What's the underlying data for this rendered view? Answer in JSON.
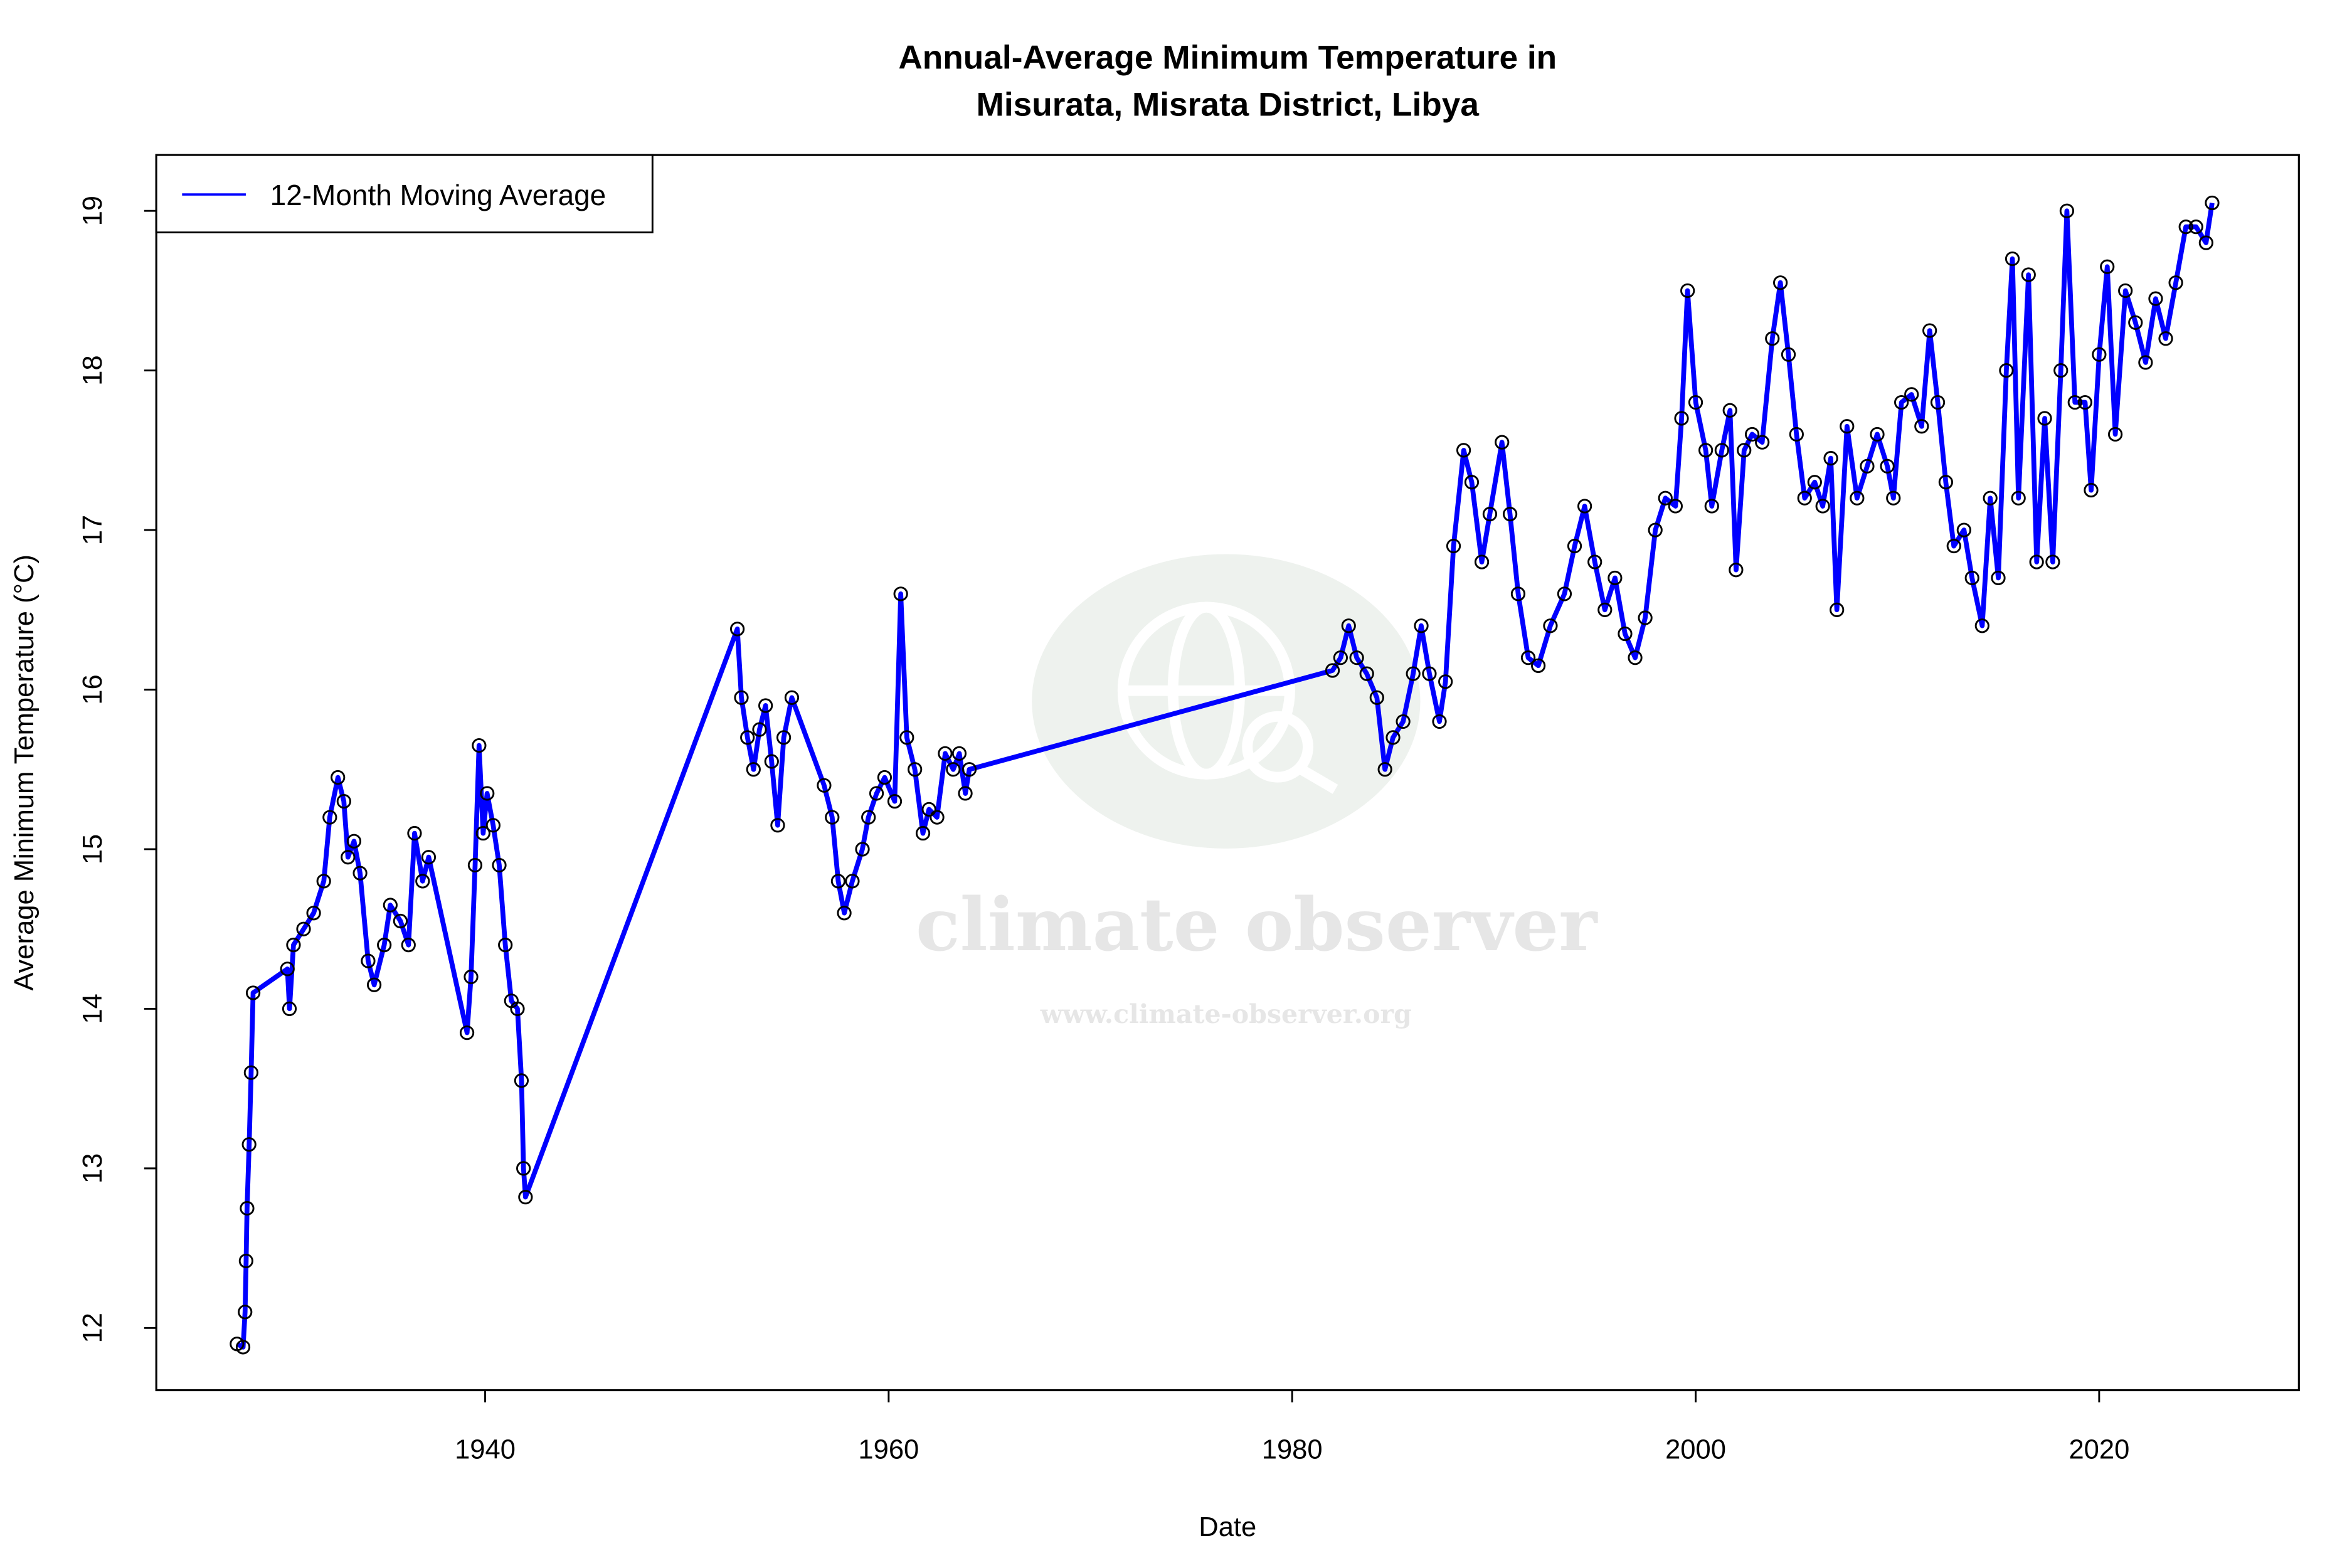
{
  "chart_data": {
    "type": "line",
    "title": "Annual-Average Minimum Temperature in",
    "subtitle": "Misurata, Misrata District, Libya",
    "xlabel": "Date",
    "ylabel": "Average Minimum Temperature (°C)",
    "xlim": [
      1923.7,
      2029.9
    ],
    "ylim": [
      11.61,
      19.35
    ],
    "x_ticks": [
      "1940",
      "1960",
      "1980",
      "2000",
      "2020"
    ],
    "y_ticks": [
      "12",
      "13",
      "14",
      "15",
      "16",
      "17",
      "18",
      "19"
    ],
    "grid": false,
    "legend_position": "top-left",
    "series": [
      {
        "name": "12-Month Moving Average",
        "color": "#0000ff",
        "marker": "open-circle",
        "points": [
          [
            1927.7,
            11.9
          ],
          [
            1928.0,
            11.88
          ],
          [
            1928.1,
            12.1
          ],
          [
            1928.15,
            12.42
          ],
          [
            1928.2,
            12.75
          ],
          [
            1928.3,
            13.15
          ],
          [
            1928.4,
            13.6
          ],
          [
            1928.5,
            14.1
          ],
          [
            1930.2,
            14.25
          ],
          [
            1930.3,
            14.0
          ],
          [
            1930.5,
            14.4
          ],
          [
            1931.0,
            14.5
          ],
          [
            1931.5,
            14.6
          ],
          [
            1932.0,
            14.8
          ],
          [
            1932.3,
            15.2
          ],
          [
            1932.7,
            15.45
          ],
          [
            1933.0,
            15.3
          ],
          [
            1933.2,
            14.95
          ],
          [
            1933.5,
            15.05
          ],
          [
            1933.8,
            14.85
          ],
          [
            1934.2,
            14.3
          ],
          [
            1934.5,
            14.15
          ],
          [
            1935.0,
            14.4
          ],
          [
            1935.3,
            14.65
          ],
          [
            1935.8,
            14.55
          ],
          [
            1936.2,
            14.4
          ],
          [
            1936.5,
            15.1
          ],
          [
            1936.9,
            14.8
          ],
          [
            1937.2,
            14.95
          ],
          [
            1939.1,
            13.85
          ],
          [
            1939.3,
            14.2
          ],
          [
            1939.5,
            14.9
          ],
          [
            1939.7,
            15.65
          ],
          [
            1939.9,
            15.1
          ],
          [
            1940.1,
            15.35
          ],
          [
            1940.4,
            15.15
          ],
          [
            1940.7,
            14.9
          ],
          [
            1941.0,
            14.4
          ],
          [
            1941.3,
            14.05
          ],
          [
            1941.6,
            14.0
          ],
          [
            1941.8,
            13.55
          ],
          [
            1941.9,
            13.0
          ],
          [
            1942.0,
            12.82
          ],
          [
            1952.5,
            16.38
          ],
          [
            1952.7,
            15.95
          ],
          [
            1953.0,
            15.7
          ],
          [
            1953.3,
            15.5
          ],
          [
            1953.6,
            15.75
          ],
          [
            1953.9,
            15.9
          ],
          [
            1954.2,
            15.55
          ],
          [
            1954.5,
            15.15
          ],
          [
            1954.8,
            15.7
          ],
          [
            1955.2,
            15.95
          ],
          [
            1956.8,
            15.4
          ],
          [
            1957.2,
            15.2
          ],
          [
            1957.5,
            14.8
          ],
          [
            1957.8,
            14.6
          ],
          [
            1958.2,
            14.8
          ],
          [
            1958.7,
            15.0
          ],
          [
            1959.0,
            15.2
          ],
          [
            1959.4,
            15.35
          ],
          [
            1959.8,
            15.45
          ],
          [
            1960.3,
            15.3
          ],
          [
            1960.6,
            16.6
          ],
          [
            1960.9,
            15.7
          ],
          [
            1961.3,
            15.5
          ],
          [
            1961.7,
            15.1
          ],
          [
            1962.0,
            15.25
          ],
          [
            1962.4,
            15.2
          ],
          [
            1962.8,
            15.6
          ],
          [
            1963.2,
            15.5
          ],
          [
            1963.5,
            15.6
          ],
          [
            1963.8,
            15.35
          ],
          [
            1964.0,
            15.5
          ],
          [
            1982.0,
            16.12
          ],
          [
            1982.4,
            16.2
          ],
          [
            1982.8,
            16.4
          ],
          [
            1983.2,
            16.2
          ],
          [
            1983.7,
            16.1
          ],
          [
            1984.2,
            15.95
          ],
          [
            1984.6,
            15.5
          ],
          [
            1985.0,
            15.7
          ],
          [
            1985.5,
            15.8
          ],
          [
            1986.0,
            16.1
          ],
          [
            1986.4,
            16.4
          ],
          [
            1986.8,
            16.1
          ],
          [
            1987.3,
            15.8
          ],
          [
            1987.6,
            16.05
          ],
          [
            1988.0,
            16.9
          ],
          [
            1988.5,
            17.5
          ],
          [
            1988.9,
            17.3
          ],
          [
            1989.4,
            16.8
          ],
          [
            1989.8,
            17.1
          ],
          [
            1990.4,
            17.55
          ],
          [
            1990.8,
            17.1
          ],
          [
            1991.2,
            16.6
          ],
          [
            1991.7,
            16.2
          ],
          [
            1992.2,
            16.15
          ],
          [
            1992.8,
            16.4
          ],
          [
            1993.5,
            16.6
          ],
          [
            1994.0,
            16.9
          ],
          [
            1994.5,
            17.15
          ],
          [
            1995.0,
            16.8
          ],
          [
            1995.5,
            16.5
          ],
          [
            1996.0,
            16.7
          ],
          [
            1996.5,
            16.35
          ],
          [
            1997.0,
            16.2
          ],
          [
            1997.5,
            16.45
          ],
          [
            1998.0,
            17.0
          ],
          [
            1998.5,
            17.2
          ],
          [
            1999.0,
            17.15
          ],
          [
            1999.3,
            17.7
          ],
          [
            1999.6,
            18.5
          ],
          [
            2000.0,
            17.8
          ],
          [
            2000.5,
            17.5
          ],
          [
            2000.8,
            17.15
          ],
          [
            2001.3,
            17.5
          ],
          [
            2001.7,
            17.75
          ],
          [
            2002.0,
            16.75
          ],
          [
            2002.4,
            17.5
          ],
          [
            2002.8,
            17.6
          ],
          [
            2003.3,
            17.55
          ],
          [
            2003.8,
            18.2
          ],
          [
            2004.2,
            18.55
          ],
          [
            2004.6,
            18.1
          ],
          [
            2005.0,
            17.6
          ],
          [
            2005.4,
            17.2
          ],
          [
            2005.9,
            17.3
          ],
          [
            2006.3,
            17.15
          ],
          [
            2006.7,
            17.45
          ],
          [
            2007.0,
            16.5
          ],
          [
            2007.5,
            17.65
          ],
          [
            2008.0,
            17.2
          ],
          [
            2008.5,
            17.4
          ],
          [
            2009.0,
            17.6
          ],
          [
            2009.5,
            17.4
          ],
          [
            2009.8,
            17.2
          ],
          [
            2010.2,
            17.8
          ],
          [
            2010.7,
            17.85
          ],
          [
            2011.2,
            17.65
          ],
          [
            2011.6,
            18.25
          ],
          [
            2012.0,
            17.8
          ],
          [
            2012.4,
            17.3
          ],
          [
            2012.8,
            16.9
          ],
          [
            2013.3,
            17.0
          ],
          [
            2013.7,
            16.7
          ],
          [
            2014.2,
            16.4
          ],
          [
            2014.6,
            17.2
          ],
          [
            2015.0,
            16.7
          ],
          [
            2015.4,
            18.0
          ],
          [
            2015.7,
            18.7
          ],
          [
            2016.0,
            17.2
          ],
          [
            2016.5,
            18.6
          ],
          [
            2016.9,
            16.8
          ],
          [
            2017.3,
            17.7
          ],
          [
            2017.7,
            16.8
          ],
          [
            2018.1,
            18.0
          ],
          [
            2018.4,
            19.0
          ],
          [
            2018.8,
            17.8
          ],
          [
            2019.3,
            17.8
          ],
          [
            2019.6,
            17.25
          ],
          [
            2020.0,
            18.1
          ],
          [
            2020.4,
            18.65
          ],
          [
            2020.8,
            17.6
          ],
          [
            2021.3,
            18.5
          ],
          [
            2021.8,
            18.3
          ],
          [
            2022.3,
            18.05
          ],
          [
            2022.8,
            18.45
          ],
          [
            2023.3,
            18.2
          ],
          [
            2023.8,
            18.55
          ],
          [
            2024.3,
            18.9
          ],
          [
            2024.8,
            18.9
          ],
          [
            2025.3,
            18.8
          ],
          [
            2025.6,
            19.05
          ]
        ]
      }
    ]
  },
  "watermark": {
    "brand": "climate observer",
    "url": "www.climate-observer.org"
  }
}
